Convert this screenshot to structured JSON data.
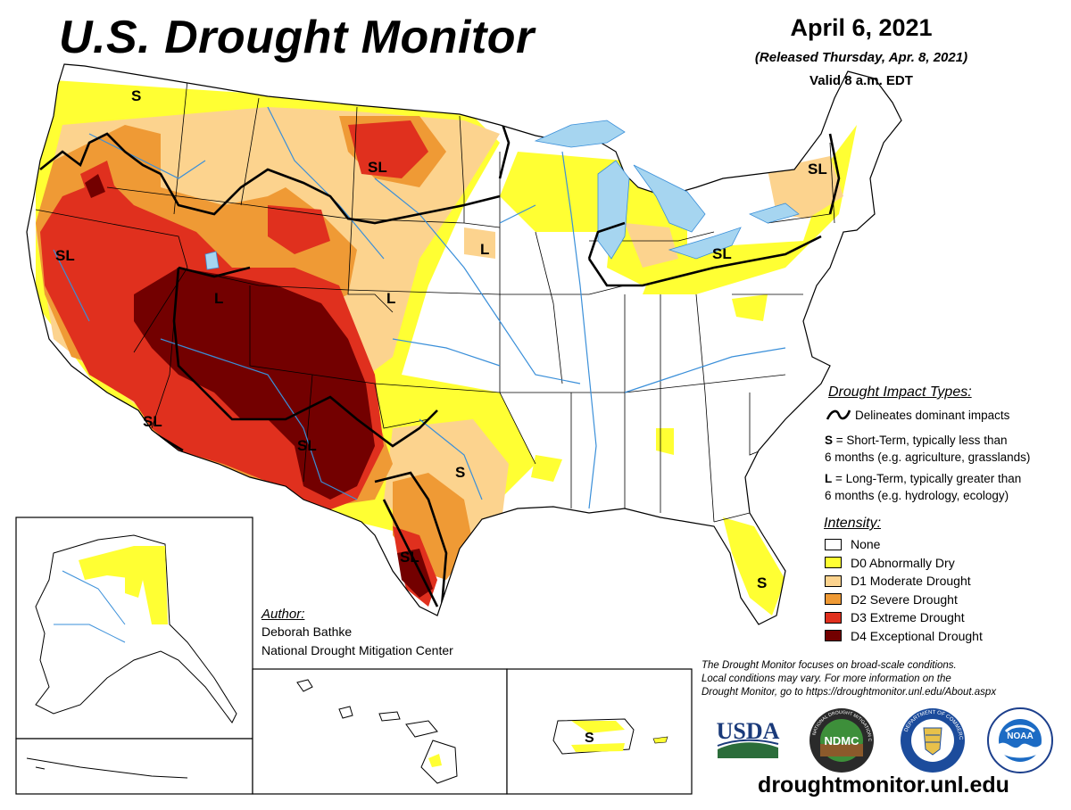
{
  "title": "U.S. Drought Monitor",
  "date": "April 6, 2021",
  "released": "(Released Thursday, Apr. 8, 2021)",
  "valid": "Valid 8 a.m. EDT",
  "impact_types": {
    "heading": "Drought Impact Types:",
    "line_label": "Delineates dominant impacts",
    "short": {
      "code": "S",
      "line1": " = Short-Term, typically less than",
      "line2": "6 months (e.g. agriculture, grasslands)"
    },
    "long": {
      "code": "L",
      "line1": " = Long-Term, typically greater than",
      "line2": "6 months (e.g. hydrology, ecology)"
    }
  },
  "intensity": {
    "heading": "Intensity:",
    "levels": [
      {
        "label": "None",
        "color": "#ffffff"
      },
      {
        "label": "D0 Abnormally Dry",
        "color": "#ffff33"
      },
      {
        "label": "D1 Moderate Drought",
        "color": "#fcd38e"
      },
      {
        "label": "D2 Severe Drought",
        "color": "#ef9a35"
      },
      {
        "label": "D3 Extreme Drought",
        "color": "#e0301e"
      },
      {
        "label": "D4 Exceptional Drought",
        "color": "#730000"
      }
    ]
  },
  "author": {
    "heading": "Author:",
    "name": "Deborah Bathke",
    "org": "National Drought Mitigation Center"
  },
  "note": [
    "The Drought Monitor focuses on broad-scale conditions.",
    "Local conditions may vary. For more information on the",
    "Drought Monitor, go to https://droughtmonitor.unl.edu/About.aspx"
  ],
  "logos": {
    "usda": "USDA",
    "ndmc": "NDMC",
    "ndmc_ring": "NATIONAL DROUGHT MITIGATION CENTER",
    "noaa": "NOAA",
    "commerce_ring": "DEPARTMENT OF COMMERCE"
  },
  "map_labels": {
    "s": "S",
    "sl": "SL",
    "l": "L"
  },
  "website": "droughtmonitor.unl.edu",
  "colors": {
    "water": "#a6d5f0",
    "river": "#3a8fd9",
    "boundary": "#000000"
  }
}
